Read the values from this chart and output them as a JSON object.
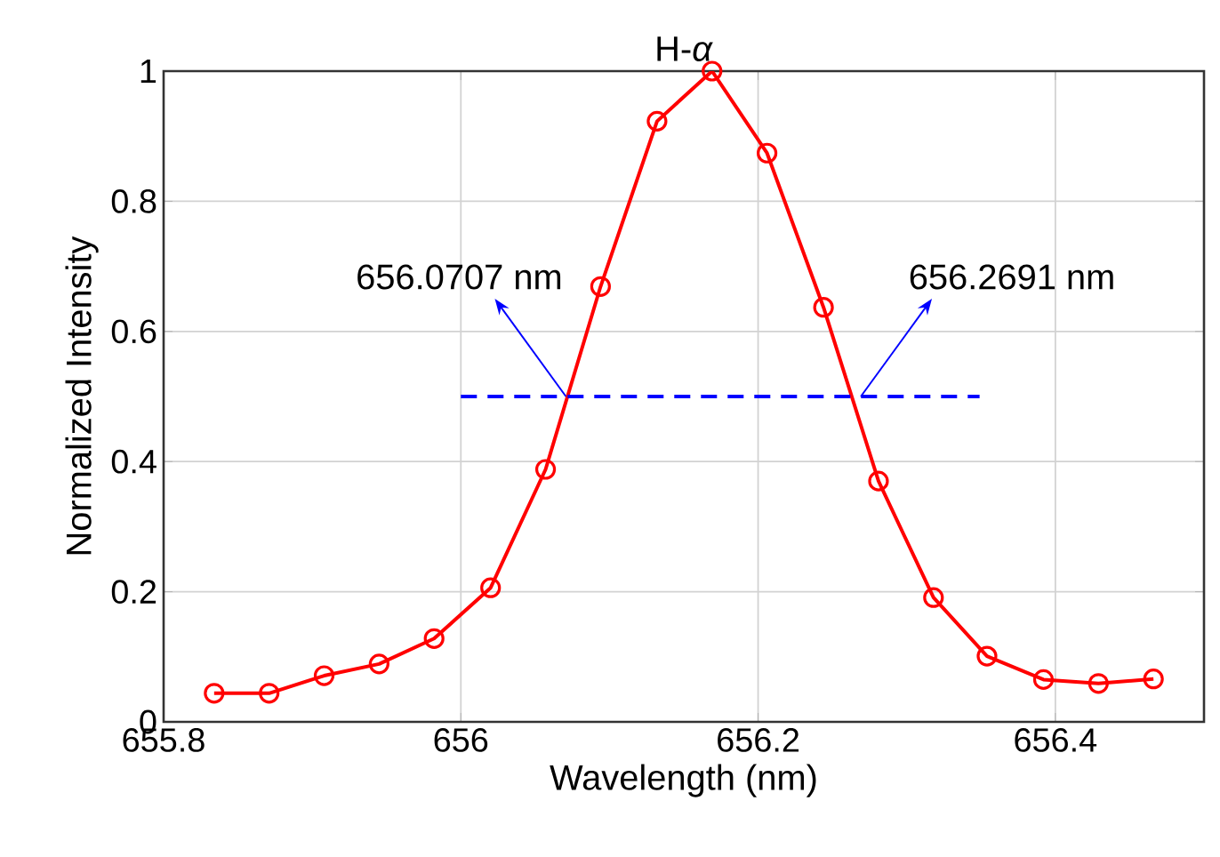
{
  "chart_data": {
    "type": "line",
    "title": "H-*α*",
    "xlabel": "Wavelength (nm)",
    "ylabel": "Normalized Intensity",
    "xlim": [
      655.8,
      656.5
    ],
    "xticks": [
      655.8,
      656,
      656.2,
      656.4
    ],
    "ylim": [
      0,
      1
    ],
    "yticks": [
      0,
      0.2,
      0.4,
      0.6,
      0.8,
      1
    ],
    "grid": true,
    "marker": "circle",
    "line_style": "solid",
    "series": [
      {
        "color": "#ff0000",
        "x": [
          655.834,
          655.871,
          655.908,
          655.945,
          655.982,
          656.02,
          656.057,
          656.094,
          656.132,
          656.169,
          656.206,
          656.244,
          656.281,
          656.318,
          656.354,
          656.392,
          656.429,
          656.466
        ],
        "values": [
          0.044,
          0.044,
          0.071,
          0.089,
          0.128,
          0.206,
          0.388,
          0.669,
          0.923,
          1.0,
          0.874,
          0.637,
          0.37,
          0.191,
          0.101,
          0.065,
          0.059,
          0.066
        ]
      },
      {
        "color": "#0000ff",
        "type": "line",
        "marker": "none",
        "line_style": "dashed",
        "x": [
          656.0,
          656.349
        ],
        "values": [
          0.5,
          0.5
        ]
      }
    ],
    "annotations": [
      {
        "text": "656.0707 nm",
        "x": 656.0707,
        "y": 0.5
      },
      {
        "text": "656.2691 nm",
        "x": 656.2691,
        "y": 0.5
      }
    ]
  }
}
